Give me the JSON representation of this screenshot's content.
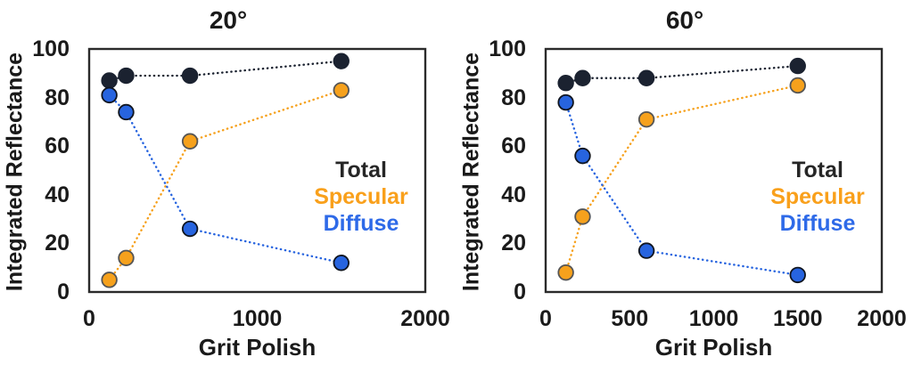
{
  "page": {
    "background": "#ffffff",
    "text_color": "#1a1a1a",
    "frame_color": "#2b2b2b"
  },
  "chart_data": [
    {
      "type": "scatter",
      "title": "20°",
      "xlabel": "Grit Polish",
      "ylabel": "Integrated Reflectance",
      "xlim": [
        0,
        2000
      ],
      "ylim": [
        0,
        100
      ],
      "x_ticks": [
        0,
        1000,
        2000
      ],
      "y_ticks": [
        0,
        20,
        40,
        60,
        80,
        100
      ],
      "grid": false,
      "line_style": "dotted",
      "legend_position": "inside-right",
      "x": [
        120,
        220,
        600,
        1500
      ],
      "series": [
        {
          "name": "Total",
          "values": [
            87,
            89,
            89,
            95
          ],
          "color": "#1b2230",
          "marker_outline": "#1b2230",
          "text_color": "#262626"
        },
        {
          "name": "Specular",
          "values": [
            5,
            14,
            62,
            83
          ],
          "color": "#f6a11c",
          "marker_outline": "#555555",
          "text_color": "#f9a01b"
        },
        {
          "name": "Diffuse",
          "values": [
            81,
            74,
            26,
            12
          ],
          "color": "#2764df",
          "marker_outline": "#10151f",
          "text_color": "#2e6ae8"
        }
      ]
    },
    {
      "type": "scatter",
      "title": "60°",
      "xlabel": "Grit Polish",
      "ylabel": "Integrated Reflectance",
      "xlim": [
        0,
        2000
      ],
      "ylim": [
        0,
        100
      ],
      "x_ticks": [
        0,
        500,
        1000,
        1500,
        2000
      ],
      "y_ticks": [
        0,
        20,
        40,
        60,
        80,
        100
      ],
      "grid": false,
      "line_style": "dotted",
      "legend_position": "inside-right",
      "x": [
        120,
        220,
        600,
        1500
      ],
      "series": [
        {
          "name": "Total",
          "values": [
            86,
            88,
            88,
            93
          ],
          "color": "#1b2230",
          "marker_outline": "#1b2230",
          "text_color": "#262626"
        },
        {
          "name": "Specular",
          "values": [
            8,
            31,
            71,
            85
          ],
          "color": "#f6a11c",
          "marker_outline": "#555555",
          "text_color": "#f9a01b"
        },
        {
          "name": "Diffuse",
          "values": [
            78,
            56,
            17,
            7
          ],
          "color": "#2764df",
          "marker_outline": "#10151f",
          "text_color": "#2e6ae8"
        }
      ]
    }
  ]
}
